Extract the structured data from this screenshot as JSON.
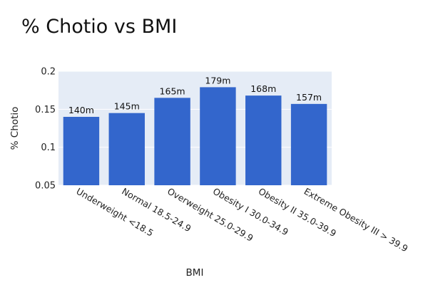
{
  "chart_data": {
    "type": "bar",
    "title": "% Chotio vs BMI",
    "xlabel": "BMI",
    "ylabel": "% Chotio",
    "categories": [
      "Underweight <18.5",
      "Normal 18.5-24.9",
      "Overweight 25.0-29.9",
      "Obesity I 30.0-34.9",
      "Obesity II 35.0-39.9",
      "Extreme Obesity III > 39.9"
    ],
    "values": [
      0.14,
      0.145,
      0.165,
      0.179,
      0.168,
      0.157
    ],
    "value_labels": [
      "140m",
      "145m",
      "165m",
      "179m",
      "168m",
      "157m"
    ],
    "ylim": [
      0.05,
      0.2
    ],
    "yticks": [
      0.05,
      0.1,
      0.15,
      0.2
    ],
    "ytick_labels": [
      "0.05",
      "0.1",
      "0.15",
      "0.2"
    ],
    "grid": true,
    "colors": {
      "bar": "#3366cc",
      "plot_bg": "#e5ecf6",
      "grid": "#ffffff"
    }
  }
}
